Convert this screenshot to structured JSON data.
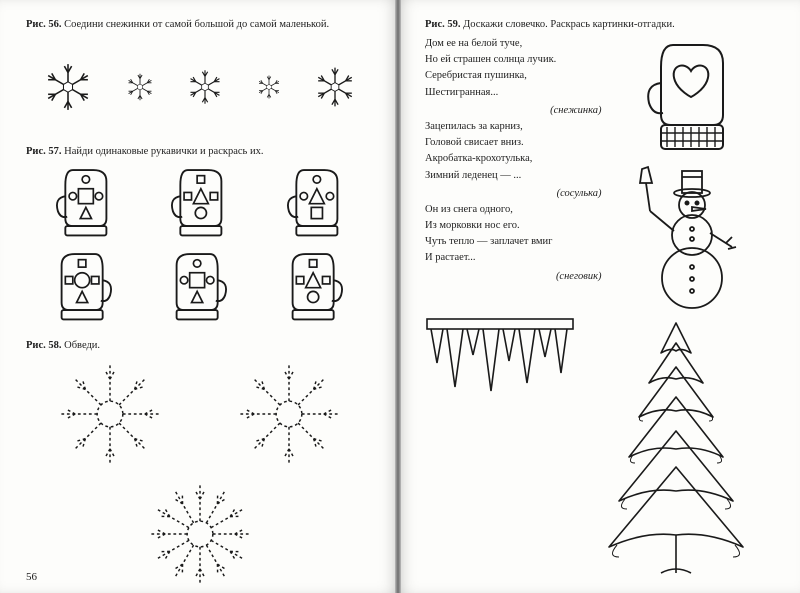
{
  "left": {
    "fig56": {
      "num": "Рис. 56.",
      "text": "Соедини снежинки от самой большой до самой маленькой."
    },
    "fig57": {
      "num": "Рис. 57.",
      "text": "Найди одинаковые рукавички и раскрась их."
    },
    "fig58": {
      "num": "Рис. 58.",
      "text": "Обведи."
    },
    "pagenum": "56"
  },
  "right": {
    "fig59": {
      "num": "Рис. 59.",
      "text": "Доскажи словечко. Раскрась картинки-отгадки."
    },
    "riddle1": {
      "l1": "Дом ее на белой туче,",
      "l2": "Но ей страшен солнца лучик.",
      "l3": "Серебристая пушинка,",
      "l4": "Шестигранная...",
      "ans": "(снежинка)"
    },
    "riddle2": {
      "l1": "Зацепилась за карниз,",
      "l2": "Головой свисает вниз.",
      "l3": "Акробатка-крохотулька,",
      "l4": "Зимний леденец — ...",
      "ans": "(сосулька)"
    },
    "riddle3": {
      "l1": "Он из снега одного,",
      "l2": "Из морковки нос его.",
      "l3": "Чуть тепло — заплачет вмиг",
      "l4": "И растает...",
      "ans": "(снеговик)"
    }
  },
  "style": {
    "stroke": "#1a1a1a",
    "dash": "3,3",
    "snow_sizes": [
      52,
      30,
      38,
      26,
      44
    ],
    "mitten_w": 56,
    "trace_size": 110
  }
}
